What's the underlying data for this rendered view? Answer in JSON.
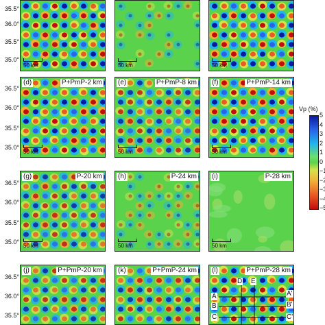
{
  "latitude_labels": [
    "35.5°",
    "36.0°",
    "35.5°",
    "35.0°",
    "36.5°",
    "36.0°",
    "35.5°",
    "35.0°",
    "36.5°",
    "36.0°",
    "35.5°",
    "35.0°",
    "36.5°",
    "36.0°",
    "35.5°"
  ],
  "scale_label": "50 km",
  "colorbar": {
    "title": "Vp (%)",
    "ticks": [
      "5",
      "4",
      "3",
      "2",
      "1",
      "0",
      "−1",
      "−2",
      "−3",
      "−4",
      "−5"
    ],
    "colors": [
      "#0a1aa0",
      "#2a62e8",
      "#22b5ec",
      "#6ee06e",
      "#5ad24c",
      "#d6e24c",
      "#f0b038",
      "#ea5a22",
      "#c00d0d"
    ]
  },
  "panels": [
    {
      "id": "a",
      "letter": "",
      "title": ""
    },
    {
      "id": "b",
      "letter": "",
      "title": ""
    },
    {
      "id": "c",
      "letter": "",
      "title": ""
    },
    {
      "id": "d",
      "letter": "(d)",
      "title": "P+PmP-2 km"
    },
    {
      "id": "e",
      "letter": "(e)",
      "title": "P+PmP-8 km"
    },
    {
      "id": "f",
      "letter": "(f)",
      "title": "P+PmP-14 km"
    },
    {
      "id": "g",
      "letter": "(g)",
      "title": "P-20 km"
    },
    {
      "id": "h",
      "letter": "(h)",
      "title": "P-24 km"
    },
    {
      "id": "i",
      "letter": "(i)",
      "title": "P-28 km"
    },
    {
      "id": "j",
      "letter": "(j)",
      "title": "P+PmP-20 km"
    },
    {
      "id": "k",
      "letter": "(k)",
      "title": "P+PmP-24 km"
    },
    {
      "id": "l",
      "letter": "(l)",
      "title": "P+PmP-28 km"
    }
  ],
  "profile_labels": {
    "D": "D",
    "E": "E",
    "A_left": "A",
    "A_right": "A'",
    "B_left": "B",
    "B_right": "B'",
    "C_left": "C",
    "C_right": "C'"
  }
}
